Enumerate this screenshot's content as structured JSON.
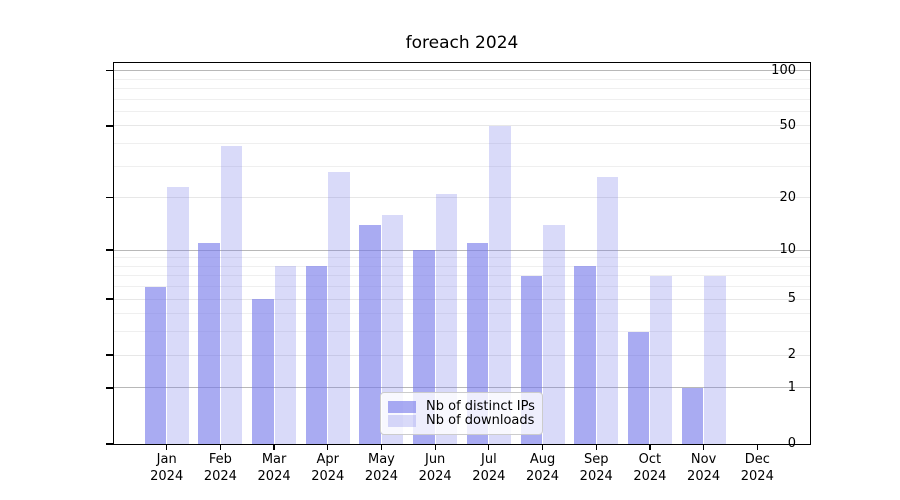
{
  "title": "foreach 2024",
  "legend": {
    "items": [
      {
        "label": "Nb of distinct IPs"
      },
      {
        "label": "Nb of downloads"
      }
    ]
  },
  "colors": {
    "bar_distinct_ips": "rgba(116,120,234,0.62)",
    "bar_downloads": "rgba(116,120,234,0.27)",
    "grid_major": "#b8b8b8",
    "grid_minor": "#efefef",
    "axis": "#000000",
    "legend_border": "#cccccc"
  },
  "chart_data": {
    "type": "bar",
    "title": "foreach 2024",
    "categories": [
      "Jan",
      "Feb",
      "Mar",
      "Apr",
      "May",
      "Jun",
      "Jul",
      "Aug",
      "Sep",
      "Oct",
      "Nov",
      "Dec"
    ],
    "category_year": "2024",
    "series": [
      {
        "name": "Nb of distinct IPs",
        "values": [
          6,
          11,
          5,
          8,
          14,
          10,
          11,
          7,
          8,
          3,
          1,
          0
        ]
      },
      {
        "name": "Nb of downloads",
        "values": [
          23,
          39,
          8,
          28,
          16,
          21,
          50,
          14,
          26,
          7,
          7,
          0
        ]
      }
    ],
    "xlabel": "",
    "ylabel": "",
    "yscale": "log10(1+v)",
    "ylim": [
      0,
      110
    ],
    "yticks": [
      0,
      1,
      2,
      5,
      10,
      20,
      50,
      100
    ],
    "yticks_major": [
      1,
      10,
      100
    ],
    "yticks_minor": [
      3,
      4,
      6,
      7,
      8,
      9,
      30,
      40,
      60,
      70,
      80,
      90
    ],
    "grid": "horizontal",
    "legend_position": "lower center"
  }
}
